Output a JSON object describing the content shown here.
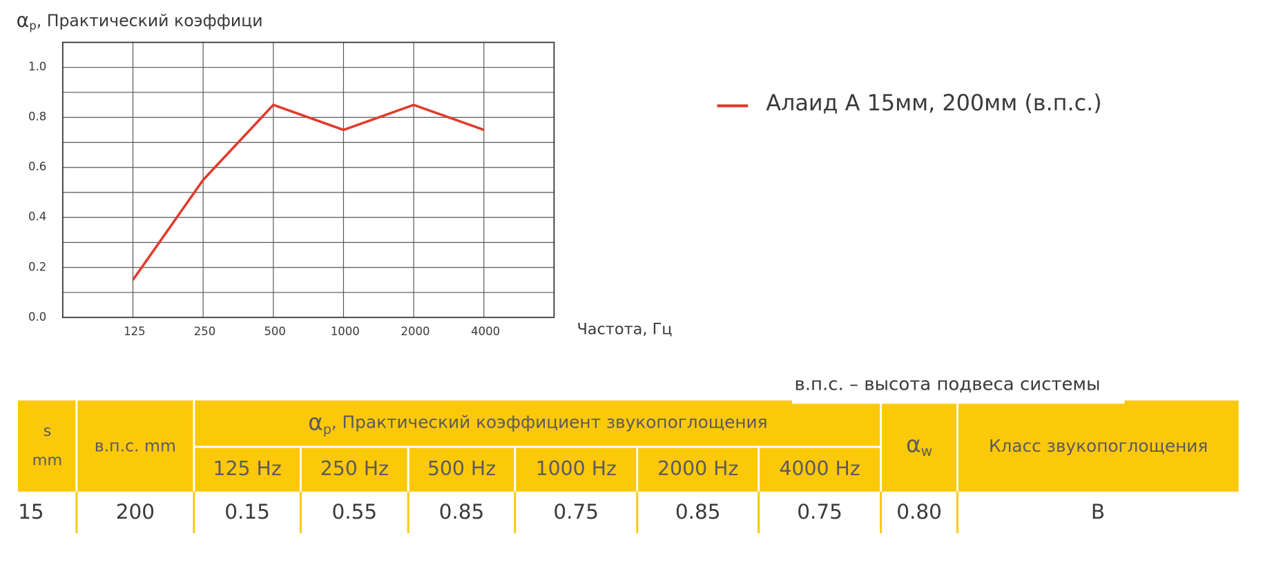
{
  "chart_data": {
    "type": "line",
    "y_label": {
      "symbol": "α",
      "subscript": "p",
      "text": ", Практический коэффици"
    },
    "x_label": "Частота, Гц",
    "categories": [
      "125",
      "250",
      "500",
      "1000",
      "2000",
      "4000"
    ],
    "series": [
      {
        "name": "Алаид А 15мм, 200мм (в.п.с.)",
        "color": "#e03a2c",
        "values": [
          0.15,
          0.55,
          0.85,
          0.75,
          0.85,
          0.75
        ]
      }
    ],
    "ylim": [
      0,
      1.1
    ],
    "yticks": [
      {
        "value": 0,
        "label": "0.0"
      },
      0.2,
      0.4,
      0.6,
      0.8,
      {
        "value": 1,
        "label": "1.0"
      }
    ],
    "minor_yticks": [
      0.1,
      0.3,
      0.5,
      0.7,
      0.9,
      1.1
    ],
    "grid": true,
    "legend": "right"
  },
  "table": {
    "note": "в.п.с. – высота подвеса системы",
    "header": {
      "s": [
        "s",
        "mm"
      ],
      "height": "в.п.с. mm",
      "coef": {
        "symbol": "α",
        "subscript": "p",
        "text": ", Практический коэффициент звукопоглощения"
      },
      "frequencies": [
        "125 Hz",
        "250 Hz",
        "500 Hz",
        "1000 Hz",
        "2000 Hz",
        "4000 Hz"
      ],
      "alpha_w": {
        "symbol": "α",
        "subscript": "w"
      },
      "class": "Класс звукопоглощения"
    },
    "rows": [
      [
        "15",
        "200",
        "0.15",
        "0.55",
        "0.85",
        "0.75",
        "0.85",
        "0.75",
        "0.80",
        "B"
      ]
    ]
  }
}
